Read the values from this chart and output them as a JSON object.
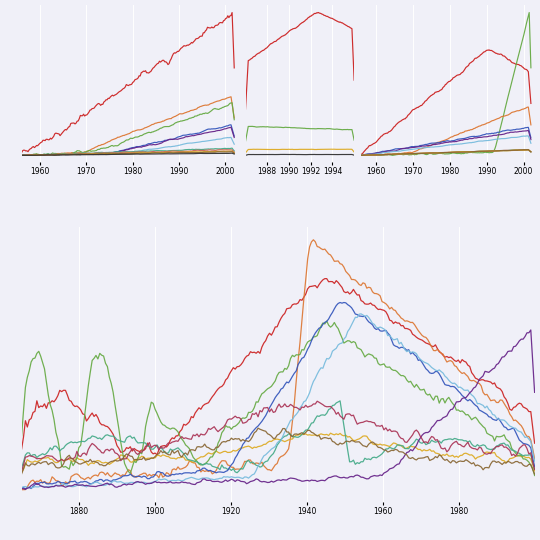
{
  "bg_color": "#f0f0f8",
  "grid_color": "#d8d8e8",
  "top_left": {
    "xlim": [
      1956,
      2003
    ],
    "xticks": [
      1960,
      1970,
      1980,
      1990,
      2000
    ],
    "colors": [
      "#cc2222",
      "#dd7733",
      "#66aa44",
      "#3355bb",
      "#662288",
      "#77bbdd",
      "#44aa88",
      "#cc6655",
      "#ddaa22",
      "#886633",
      "#333333"
    ]
  },
  "top_middle": {
    "xlim": [
      1986,
      1996
    ],
    "xticks": [
      1988,
      1990,
      1992,
      1994
    ],
    "colors": [
      "#cc2222",
      "#66aa44",
      "#ddaa22",
      "#333333"
    ]
  },
  "top_right": {
    "xlim": [
      1956,
      2003
    ],
    "xticks": [
      1960,
      1970,
      1980,
      1990,
      2000
    ],
    "colors": [
      "#cc2222",
      "#66aa44",
      "#dd7733",
      "#3355bb",
      "#662288",
      "#77bbdd",
      "#44aa88",
      "#cc6655",
      "#ddaa22",
      "#886633"
    ]
  },
  "bottom": {
    "xlim": [
      1865,
      2000
    ],
    "xticks": [
      1880,
      1900,
      1920,
      1940,
      1960,
      1980
    ],
    "colors": [
      "#cc2222",
      "#dd7733",
      "#ddaa22",
      "#66aa44",
      "#44aa88",
      "#3355bb",
      "#77bbdd",
      "#662288",
      "#aa3355",
      "#886633"
    ]
  }
}
